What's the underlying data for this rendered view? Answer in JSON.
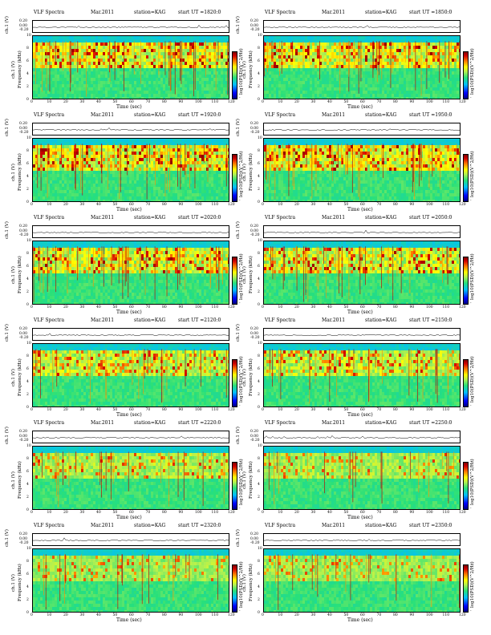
{
  "chart_data": {
    "type": "heatmap",
    "figure": "VLF spectrogram grid",
    "colors": {
      "low": "#00007f",
      "mid": "#28e07a",
      "high": "#7f0000",
      "background": "#3fd97a"
    },
    "colorbar": {
      "label": "log10(PSD)(V^2/Hz)",
      "ticks": [
        "-",
        "-"
      ]
    },
    "panels": [
      {
        "title": "VLF Spectra",
        "date": "Mar.2011",
        "station": "station=KAG",
        "start": "start UT =1820:0",
        "trace_ylabel": "ch.1 (V)",
        "ylabel": "Frequency (kHz)",
        "xlabel": "Time (sec)"
      },
      {
        "title": "VLF Spectra",
        "date": "Mar.2011",
        "station": "station=KAG",
        "start": "start UT =1850:0",
        "trace_ylabel": "ch.1 (V)",
        "ylabel": "Frequency (kHz)",
        "xlabel": "Time (sec)"
      },
      {
        "title": "VLF Spectra",
        "date": "Mar.2011",
        "station": "station=KAG",
        "start": "start UT =1920:0",
        "trace_ylabel": "ch.1 (V)",
        "ylabel": "Frequency (kHz)",
        "xlabel": "Time (sec)"
      },
      {
        "title": "VLF Spectra",
        "date": "Mar.2011",
        "station": "station=KAG",
        "start": "start UT =1950:0",
        "trace_ylabel": "ch.1 (V)",
        "ylabel": "Frequency (kHz)",
        "xlabel": "Time (sec)"
      },
      {
        "title": "VLF Spectra",
        "date": "Mar.2011",
        "station": "station=KAG",
        "start": "start UT =2020:0",
        "trace_ylabel": "ch.1 (V)",
        "ylabel": "Frequency (kHz)",
        "xlabel": "Time (sec)"
      },
      {
        "title": "VLF Spectra",
        "date": "Mar.2011",
        "station": "station=KAG",
        "start": "start UT =2050:0",
        "trace_ylabel": "ch.1 (V)",
        "ylabel": "Frequency (kHz)",
        "xlabel": "Time (sec)"
      },
      {
        "title": "VLF Spectra",
        "date": "Mar.2011",
        "station": "station=KAG",
        "start": "start UT =2120:0",
        "trace_ylabel": "ch.1 (V)",
        "ylabel": "Frequency (kHz)",
        "xlabel": "Time (sec)"
      },
      {
        "title": "VLF Spectra",
        "date": "Mar.2011",
        "station": "station=KAG",
        "start": "start UT =2150:0",
        "trace_ylabel": "ch.1 (V)",
        "ylabel": "Frequency (kHz)",
        "xlabel": "Time (sec)"
      },
      {
        "title": "VLF Spectra",
        "date": "Mar.2011",
        "station": "station=KAG",
        "start": "start UT =2220:0",
        "trace_ylabel": "ch.1 (V)",
        "ylabel": "Frequency (kHz)",
        "xlabel": "Time (sec)"
      },
      {
        "title": "VLF Spectra",
        "date": "Mar.2011",
        "station": "station=KAG",
        "start": "start UT =2250:0",
        "trace_ylabel": "ch.1 (V)",
        "ylabel": "Frequency (kHz)",
        "xlabel": "Time (sec)"
      },
      {
        "title": "VLF Spectra",
        "date": "Mar.2011",
        "station": "station=KAG",
        "start": "start UT =2320:0",
        "trace_ylabel": "ch.1 (V)",
        "ylabel": "Frequency (kHz)",
        "xlabel": "Time (sec)"
      },
      {
        "title": "VLF Spectra",
        "date": "Mar.2011",
        "station": "station=KAG",
        "start": "start UT =2350:0",
        "trace_ylabel": "ch.1 (V)",
        "ylabel": "Frequency (kHz)",
        "xlabel": "Time (sec)"
      }
    ],
    "xlim": [
      0,
      120
    ],
    "xticks": [
      "0",
      "10",
      "20",
      "30",
      "40",
      "50",
      "60",
      "70",
      "80",
      "90",
      "100",
      "110",
      "120"
    ],
    "ylim": [
      0,
      10
    ],
    "yticks": [
      "0",
      "2",
      "4",
      "6",
      "8",
      "10"
    ],
    "trace_yticks": [
      "0.20",
      "0.00",
      "-0.20"
    ],
    "panel_intensity": [
      0.95,
      0.95,
      0.95,
      0.95,
      0.9,
      0.9,
      0.7,
      0.7,
      0.55,
      0.5,
      0.45,
      0.45
    ]
  }
}
